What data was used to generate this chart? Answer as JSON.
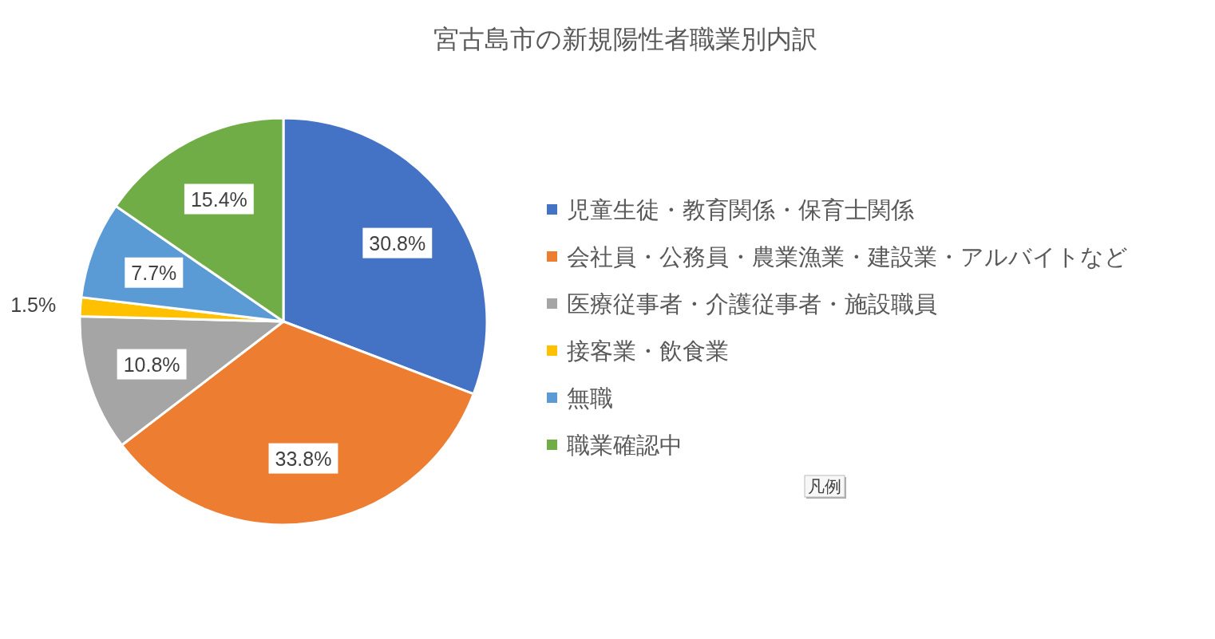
{
  "chart_data": {
    "type": "pie",
    "title": "宮古島市の新規陽性者職業別内訳",
    "categories": [
      "児童生徒・教育関係・保育士関係",
      "会社員・公務員・農業漁業・建設業・アルバイトなど",
      "医療従事者・介護従事者・施設職員",
      "接客業・飲食業",
      "無職",
      "職業確認中"
    ],
    "values": [
      30.8,
      33.8,
      10.8,
      1.5,
      7.7,
      15.4
    ],
    "colors": [
      "#4472c4",
      "#ed7d31",
      "#a5a5a5",
      "#ffc000",
      "#5b9bd5",
      "#70ad47"
    ],
    "value_labels": [
      "30.8%",
      "33.8%",
      "10.8%",
      "1.5%",
      "7.7%",
      "15.4%"
    ],
    "legend": "right",
    "annotations": [
      "凡例"
    ]
  }
}
